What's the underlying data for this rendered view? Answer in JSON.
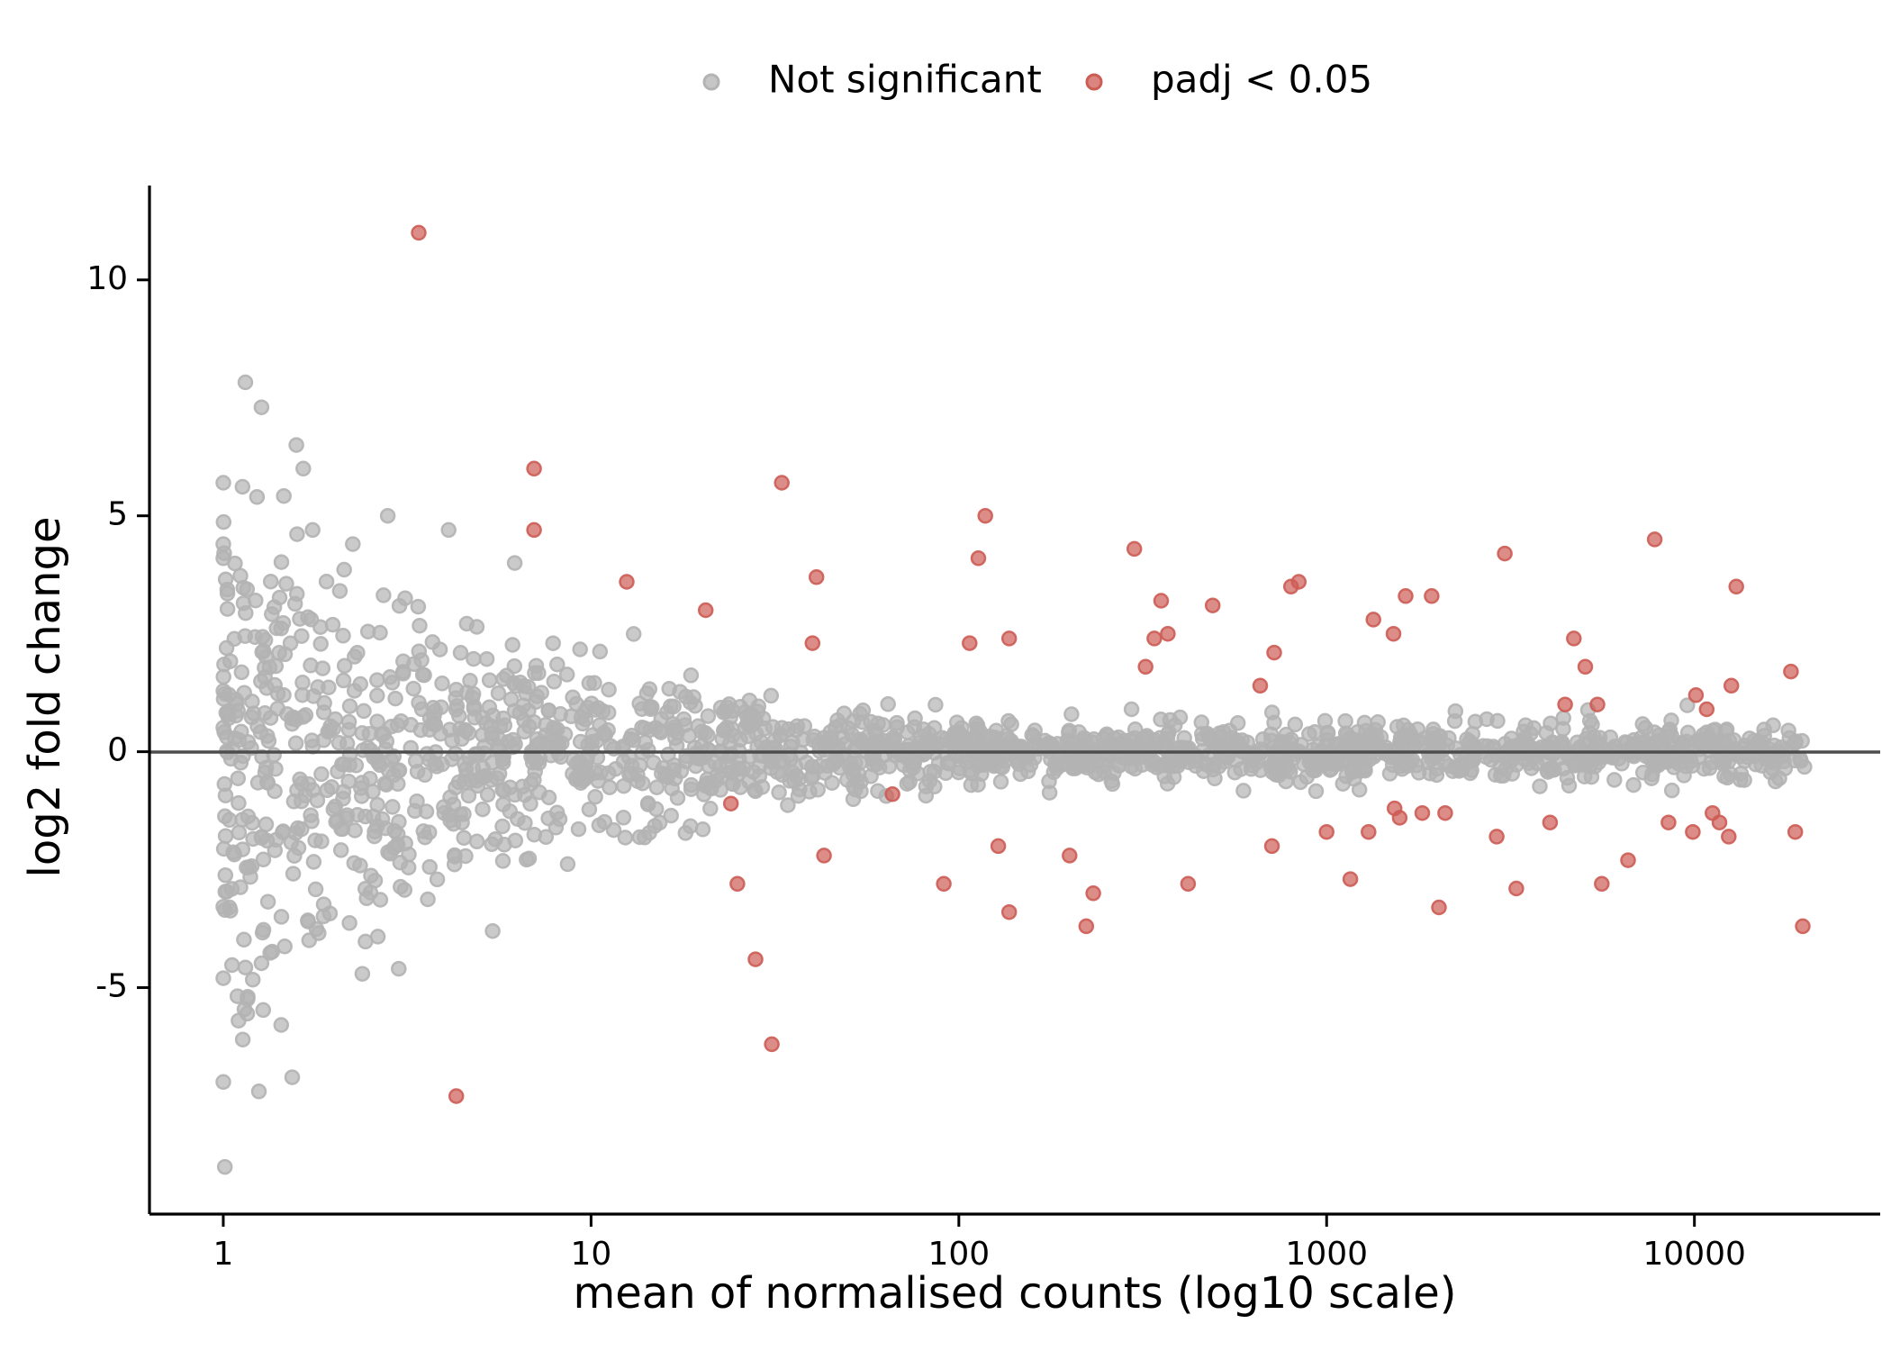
{
  "chart_data": {
    "type": "scatter",
    "title": "",
    "xlabel": "mean of normalised counts (log10 scale)",
    "ylabel": "log2 fold change",
    "x_scale": "log10",
    "xlim": [
      0.63,
      32000
    ],
    "ylim": [
      -9.8,
      12
    ],
    "x_ticks": [
      1,
      10,
      100,
      1000,
      10000
    ],
    "x_tick_labels": [
      "1",
      "10",
      "100",
      "1000",
      "10000"
    ],
    "y_ticks": [
      -5,
      0,
      5,
      10
    ],
    "y_tick_labels": [
      "-5",
      "0",
      "5",
      "10"
    ],
    "reference_line_y": 0,
    "grid": false,
    "legend_position": "top",
    "colors": {
      "not_significant": "#b3b3b3",
      "significant": "#cd5c55",
      "reference_line": "#4d4d4d",
      "axis": "#000000"
    },
    "legend": [
      {
        "label": "Not significant",
        "color": "#b3b3b3"
      },
      {
        "label": "padj < 0.05",
        "color": "#cd5c55"
      }
    ],
    "series": [
      {
        "name": "Not significant",
        "x_range": [
          1,
          20000
        ],
        "n_points": 1900,
        "highlighted_points": [
          {
            "x": 1,
            "y": 5.7
          },
          {
            "x": 1,
            "y": 4.4
          },
          {
            "x": 1,
            "y": 4.1
          },
          {
            "x": 1,
            "y": -4.8
          },
          {
            "x": 1,
            "y": -7.0
          },
          {
            "x": 1.01,
            "y": -8.8
          },
          {
            "x": 1.1,
            "y": -5.7
          },
          {
            "x": 1.13,
            "y": -6.1
          },
          {
            "x": 1.27,
            "y": 7.3
          },
          {
            "x": 1.25,
            "y": -7.2
          },
          {
            "x": 1.58,
            "y": 6.5
          },
          {
            "x": 1.65,
            "y": 6.0
          },
          {
            "x": 1.54,
            "y": -6.9
          },
          {
            "x": 1.75,
            "y": 4.7
          },
          {
            "x": 2.25,
            "y": 4.4
          },
          {
            "x": 2.8,
            "y": 5.0
          },
          {
            "x": 3.0,
            "y": -4.6
          },
          {
            "x": 4.1,
            "y": 4.7
          },
          {
            "x": 5.4,
            "y": -3.8
          },
          {
            "x": 6.2,
            "y": 4.0
          }
        ]
      },
      {
        "name": "padj < 0.05",
        "points": [
          {
            "x": 3.4,
            "y": 11.0
          },
          {
            "x": 4.3,
            "y": -7.3
          },
          {
            "x": 7.0,
            "y": 6.0
          },
          {
            "x": 7.0,
            "y": 4.7
          },
          {
            "x": 12.5,
            "y": 3.6
          },
          {
            "x": 20.5,
            "y": 3.0
          },
          {
            "x": 24,
            "y": -1.1
          },
          {
            "x": 25,
            "y": -2.8
          },
          {
            "x": 28,
            "y": -4.4
          },
          {
            "x": 31,
            "y": -6.2
          },
          {
            "x": 33,
            "y": 5.7
          },
          {
            "x": 40,
            "y": 2.3
          },
          {
            "x": 41,
            "y": 3.7
          },
          {
            "x": 43,
            "y": -2.2
          },
          {
            "x": 66,
            "y": -0.9
          },
          {
            "x": 91,
            "y": -2.8
          },
          {
            "x": 107,
            "y": 2.3
          },
          {
            "x": 113,
            "y": 4.1
          },
          {
            "x": 118,
            "y": 5.0
          },
          {
            "x": 128,
            "y": -2.0
          },
          {
            "x": 137,
            "y": 2.4
          },
          {
            "x": 137,
            "y": -3.4
          },
          {
            "x": 200,
            "y": -2.2
          },
          {
            "x": 222,
            "y": -3.7
          },
          {
            "x": 232,
            "y": -3.0
          },
          {
            "x": 300,
            "y": 4.3
          },
          {
            "x": 322,
            "y": 1.8
          },
          {
            "x": 340,
            "y": 2.4
          },
          {
            "x": 355,
            "y": 3.2
          },
          {
            "x": 370,
            "y": 2.5
          },
          {
            "x": 420,
            "y": -2.8
          },
          {
            "x": 490,
            "y": 3.1
          },
          {
            "x": 660,
            "y": 1.4
          },
          {
            "x": 710,
            "y": -2.0
          },
          {
            "x": 720,
            "y": 2.1
          },
          {
            "x": 800,
            "y": 3.5
          },
          {
            "x": 840,
            "y": 3.6
          },
          {
            "x": 1000,
            "y": -1.7
          },
          {
            "x": 1160,
            "y": -2.7
          },
          {
            "x": 1300,
            "y": -1.7
          },
          {
            "x": 1340,
            "y": 2.8
          },
          {
            "x": 1520,
            "y": 2.5
          },
          {
            "x": 1530,
            "y": -1.2
          },
          {
            "x": 1580,
            "y": -1.4
          },
          {
            "x": 1640,
            "y": 3.3
          },
          {
            "x": 1820,
            "y": -1.3
          },
          {
            "x": 1930,
            "y": 3.3
          },
          {
            "x": 2020,
            "y": -3.3
          },
          {
            "x": 2100,
            "y": -1.3
          },
          {
            "x": 2900,
            "y": -1.8
          },
          {
            "x": 3050,
            "y": 4.2
          },
          {
            "x": 3280,
            "y": -2.9
          },
          {
            "x": 4050,
            "y": -1.5
          },
          {
            "x": 4450,
            "y": 1.0
          },
          {
            "x": 4700,
            "y": 2.4
          },
          {
            "x": 5050,
            "y": 1.8
          },
          {
            "x": 5450,
            "y": 1.0
          },
          {
            "x": 5600,
            "y": -2.8
          },
          {
            "x": 6600,
            "y": -2.3
          },
          {
            "x": 7800,
            "y": 4.5
          },
          {
            "x": 8500,
            "y": -1.5
          },
          {
            "x": 9900,
            "y": -1.7
          },
          {
            "x": 10100,
            "y": 1.2
          },
          {
            "x": 10800,
            "y": 0.9
          },
          {
            "x": 11200,
            "y": -1.3
          },
          {
            "x": 11700,
            "y": -1.5
          },
          {
            "x": 12400,
            "y": -1.8
          },
          {
            "x": 12600,
            "y": 1.4
          },
          {
            "x": 13000,
            "y": 3.5
          },
          {
            "x": 18300,
            "y": 1.7
          },
          {
            "x": 18800,
            "y": -1.7
          },
          {
            "x": 19700,
            "y": -3.7
          }
        ]
      }
    ]
  }
}
